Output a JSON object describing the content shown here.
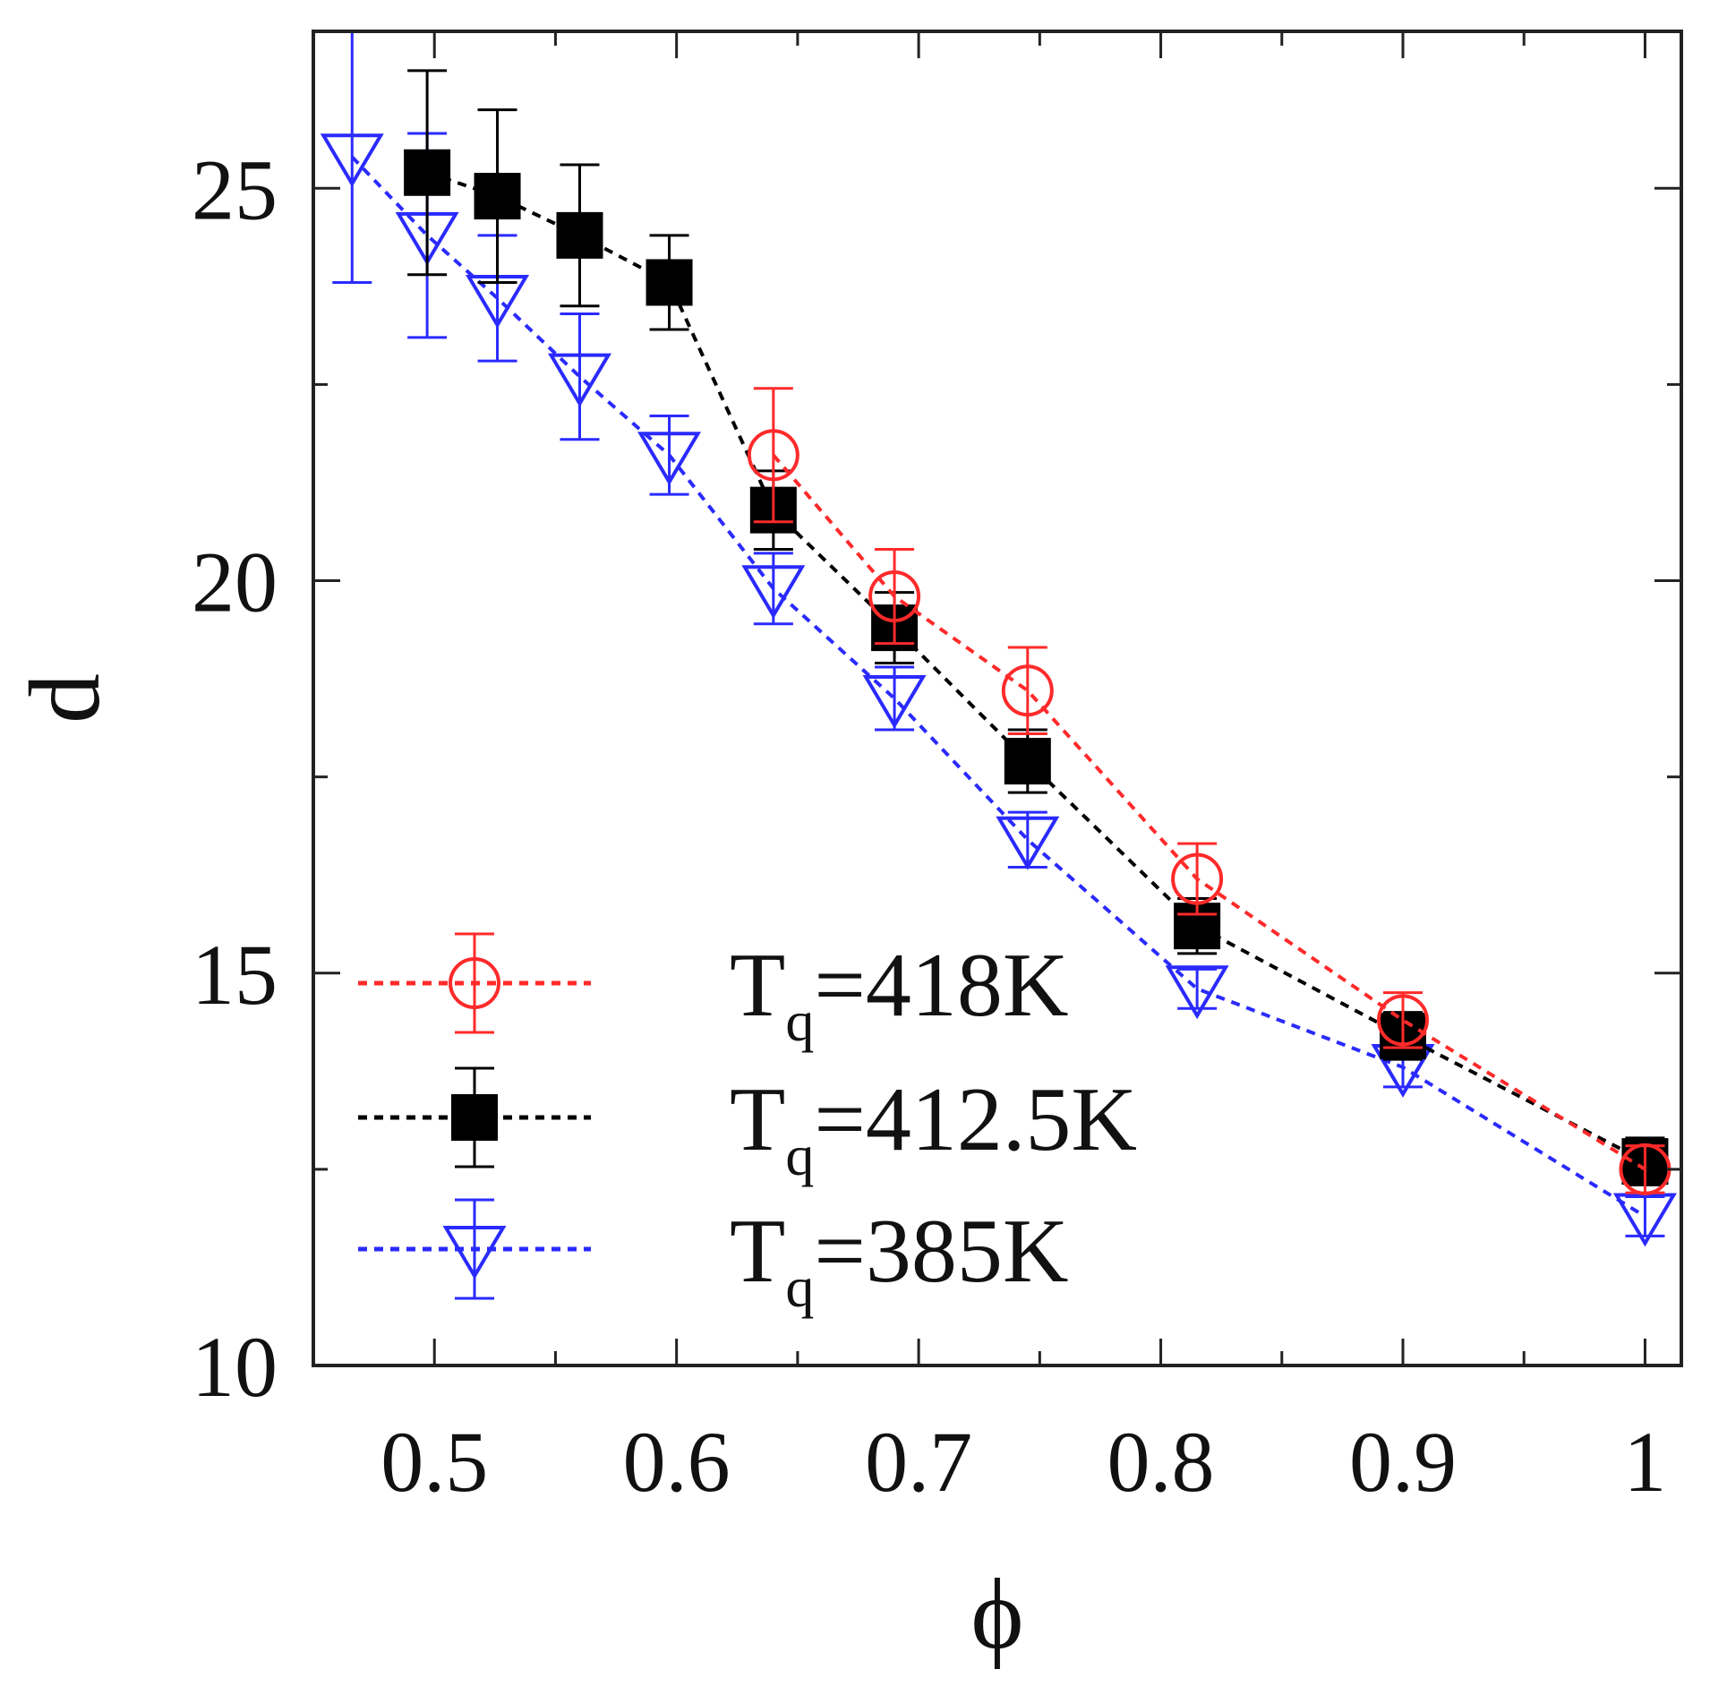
{
  "chart_data": {
    "type": "line",
    "title": "",
    "xlabel": "ϕ",
    "ylabel": "d",
    "xlim": [
      0.45,
      1.015
    ],
    "ylim": [
      10,
      27
    ],
    "x_ticks": [
      0.5,
      0.6,
      0.7,
      0.8,
      0.9,
      1
    ],
    "x_tick_labels": [
      "0.5",
      "0.6",
      "0.7",
      "0.8",
      "0.9",
      "1"
    ],
    "y_ticks": [
      10,
      15,
      20,
      25
    ],
    "y_tick_labels": [
      "10",
      "15",
      "20",
      "25"
    ],
    "grid": false,
    "legend_position": "bottom-left",
    "series": [
      {
        "name": "T",
        "name_sub": "q",
        "name_rest": "=418K",
        "color": "#ff2a2a",
        "marker": "open-circle",
        "line_style": "dashed",
        "x": [
          0.64,
          0.69,
          0.745,
          0.815,
          0.9,
          1.0
        ],
        "y": [
          21.6,
          19.8,
          18.6,
          16.2,
          14.4,
          12.5
        ],
        "err": [
          0.85,
          0.6,
          0.55,
          0.45,
          0.35,
          0.3
        ]
      },
      {
        "name": "T",
        "name_sub": "q",
        "name_rest": "=412.5K",
        "color": "#000000",
        "marker": "filled-square",
        "line_style": "dashed",
        "x": [
          0.497,
          0.526,
          0.56,
          0.597,
          0.64,
          0.69,
          0.745,
          0.815,
          0.9,
          1.0
        ],
        "y": [
          25.2,
          24.9,
          24.4,
          23.8,
          20.9,
          19.4,
          17.7,
          15.6,
          14.2,
          12.6
        ],
        "err": [
          1.3,
          1.1,
          0.9,
          0.6,
          0.5,
          0.45,
          0.4,
          0.35,
          0.3,
          0.3
        ]
      },
      {
        "name": "T",
        "name_sub": "q",
        "name_rest": "=385K",
        "color": "#2a2aff",
        "marker": "open-triangle-down",
        "line_style": "dashed",
        "x": [
          0.466,
          0.497,
          0.526,
          0.56,
          0.597,
          0.64,
          0.69,
          0.745,
          0.815,
          0.9,
          1.0
        ],
        "y": [
          25.4,
          24.4,
          23.6,
          22.6,
          21.6,
          19.9,
          18.5,
          16.7,
          14.8,
          13.8,
          11.9
        ],
        "err": [
          1.6,
          1.3,
          0.8,
          0.8,
          0.5,
          0.45,
          0.4,
          0.35,
          0.25,
          0.25,
          0.25
        ]
      }
    ]
  }
}
